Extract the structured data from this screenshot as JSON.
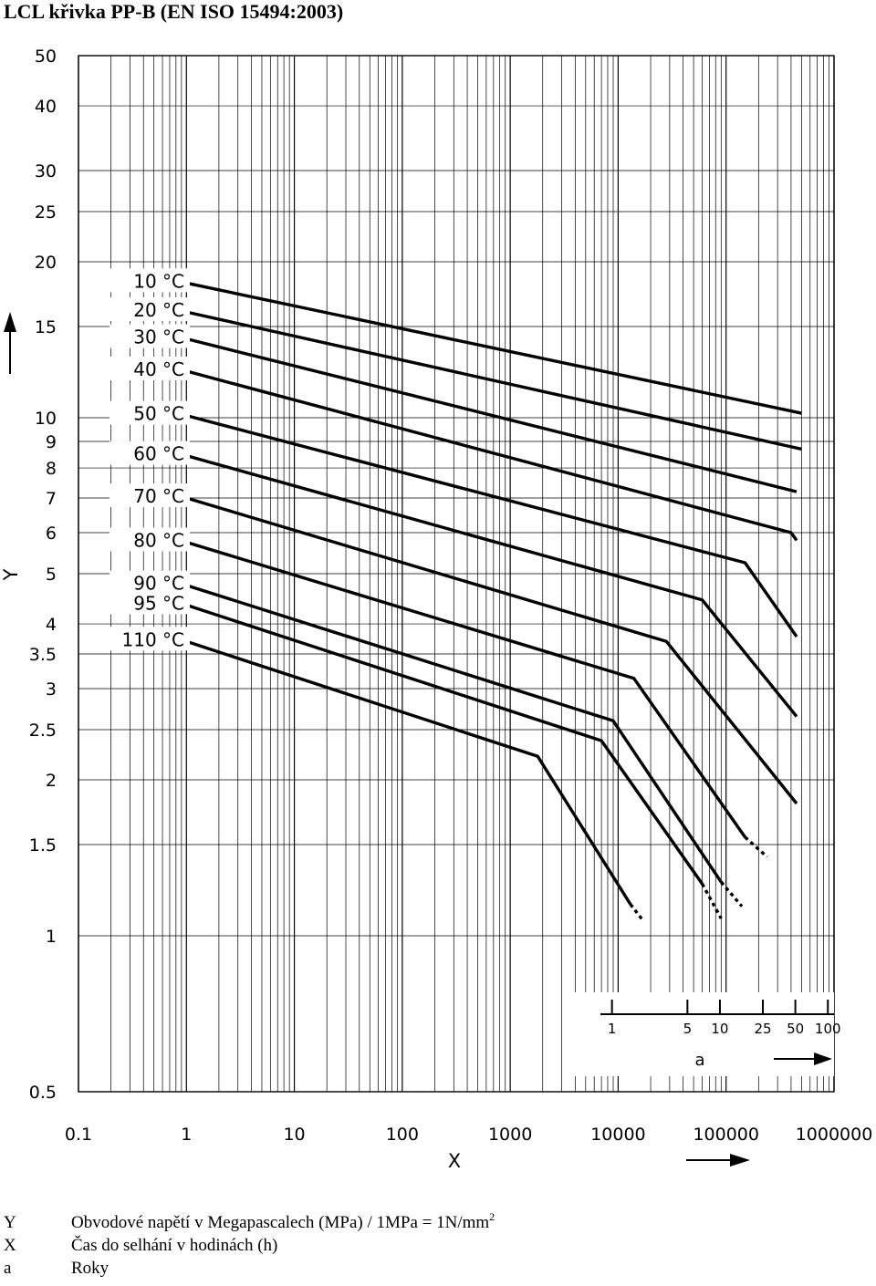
{
  "title": "LCL křivka PP-B (EN ISO 15494:2003)",
  "chart_data": {
    "type": "line",
    "xscale": "log",
    "yscale": "log",
    "xlim": [
      0.1,
      1000000
    ],
    "ylim": [
      0.5,
      50
    ],
    "x_ticks": [
      0.1,
      1,
      10,
      100,
      1000,
      10000,
      100000,
      1000000
    ],
    "x_tick_labels": [
      "0.1",
      "1",
      "10",
      "100",
      "1000",
      "10000",
      "100000",
      "1000000"
    ],
    "y_ticks": [
      0.5,
      1,
      1.5,
      2,
      2.5,
      3,
      3.5,
      4,
      5,
      6,
      7,
      8,
      9,
      10,
      15,
      20,
      25,
      30,
      40,
      50
    ],
    "y_tick_labels": [
      "0.5",
      "1",
      "1.5",
      "2",
      "2.5",
      "3",
      "3.5",
      "4",
      "5",
      "6",
      "7",
      "8",
      "9",
      "10",
      "15",
      "20",
      "25",
      "30",
      "40",
      "50"
    ],
    "xlabel": "X",
    "ylabel": "Y",
    "grid": true,
    "series": [
      {
        "name": "10 °C",
        "points": [
          [
            1,
            18.2
          ],
          [
            500000,
            10.2
          ]
        ],
        "dashed": []
      },
      {
        "name": "20 °C",
        "points": [
          [
            1,
            16.0
          ],
          [
            500000,
            8.7
          ]
        ],
        "dashed": []
      },
      {
        "name": "30 °C",
        "points": [
          [
            1,
            14.2
          ],
          [
            450000,
            7.2
          ]
        ],
        "dashed": []
      },
      {
        "name": "40 °C",
        "points": [
          [
            1,
            12.3
          ],
          [
            400000,
            6.0
          ],
          [
            450000,
            5.8
          ]
        ],
        "dashed": []
      },
      {
        "name": "50 °C",
        "points": [
          [
            1,
            10.1
          ],
          [
            150000,
            5.25
          ],
          [
            450000,
            3.78
          ]
        ],
        "dashed": []
      },
      {
        "name": "60 °C",
        "points": [
          [
            1,
            8.45
          ],
          [
            60000,
            4.45
          ],
          [
            450000,
            2.65
          ]
        ],
        "dashed": []
      },
      {
        "name": "70 °C",
        "points": [
          [
            1,
            7.0
          ],
          [
            28000,
            3.7
          ],
          [
            450000,
            1.8
          ]
        ],
        "dashed": []
      },
      {
        "name": "80 °C",
        "points": [
          [
            1,
            5.75
          ],
          [
            14000,
            3.14
          ],
          [
            150000,
            1.55
          ]
        ],
        "dashed": [
          [
            150000,
            1.55
          ],
          [
            240000,
            1.42
          ]
        ]
      },
      {
        "name": "90 °C",
        "points": [
          [
            1,
            4.75
          ],
          [
            9000,
            2.6
          ],
          [
            90000,
            1.27
          ]
        ],
        "dashed": [
          [
            90000,
            1.27
          ],
          [
            140000,
            1.14
          ]
        ]
      },
      {
        "name": "95 °C",
        "points": [
          [
            1,
            4.35
          ],
          [
            7000,
            2.38
          ],
          [
            60000,
            1.26
          ]
        ],
        "dashed": [
          [
            60000,
            1.26
          ],
          [
            90000,
            1.08
          ]
        ]
      },
      {
        "name": "110 °C",
        "points": [
          [
            1,
            3.7
          ],
          [
            1800,
            2.22
          ],
          [
            13000,
            1.15
          ]
        ],
        "dashed": [
          [
            13000,
            1.15
          ],
          [
            17000,
            1.07
          ]
        ]
      }
    ],
    "inset_axis": {
      "label": "a",
      "ticks": [
        1,
        5,
        10,
        25,
        50,
        100
      ],
      "tick_labels": [
        "1",
        "5",
        "10",
        "25",
        "50",
        "100"
      ]
    }
  },
  "legend": [
    {
      "key": "Y",
      "text": "Obvodové napětí v Megapascalech (MPa) / 1MPa = 1N/mm",
      "sup": "2"
    },
    {
      "key": "X",
      "text": "Čas do selhání v hodinách (h)",
      "sup": ""
    },
    {
      "key": "a",
      "text": "Roky",
      "sup": ""
    }
  ]
}
